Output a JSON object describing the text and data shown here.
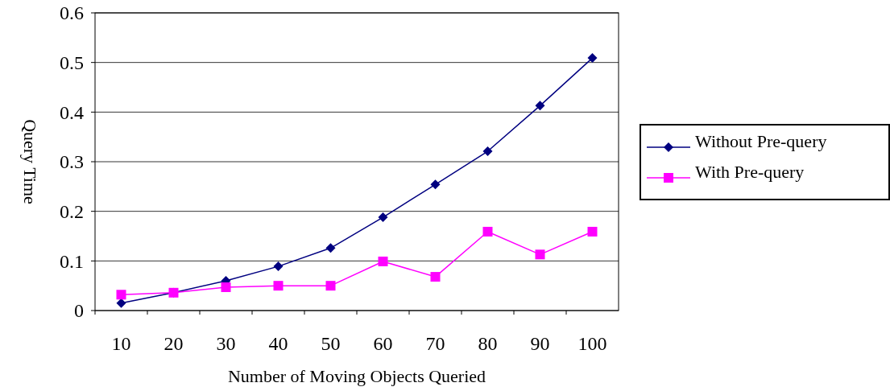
{
  "chart_data": {
    "type": "line",
    "xlabel": "Number of Moving Objects Queried",
    "ylabel": "Query Time",
    "categories": [
      "10",
      "20",
      "30",
      "40",
      "50",
      "60",
      "70",
      "80",
      "90",
      "100"
    ],
    "series": [
      {
        "name": "Without Pre-query",
        "color": "#000080",
        "marker": "diamond",
        "values": [
          0.015,
          0.036,
          0.06,
          0.089,
          0.126,
          0.188,
          0.254,
          0.321,
          0.413,
          0.509
        ]
      },
      {
        "name": "With Pre-query",
        "color": "#ff00ff",
        "marker": "square",
        "values": [
          0.032,
          0.036,
          0.047,
          0.05,
          0.05,
          0.099,
          0.068,
          0.159,
          0.113,
          0.159
        ]
      }
    ],
    "ylim": [
      0,
      0.6
    ],
    "yticks": [
      0,
      0.1,
      0.2,
      0.3,
      0.4,
      0.5,
      0.6
    ],
    "grid": "y",
    "legend": "right"
  }
}
